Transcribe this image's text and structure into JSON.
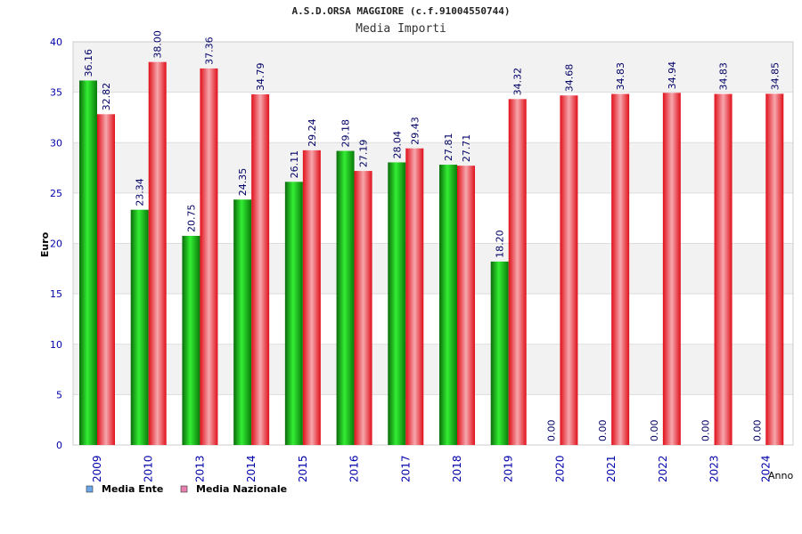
{
  "chart_data": {
    "type": "bar",
    "title": "A.S.D.ORSA MAGGIORE (c.f.91004550744)",
    "subtitle": "Media Importi",
    "xlabel": "Anno",
    "ylabel": "Euro",
    "ylim": [
      0,
      40
    ],
    "yticks": [
      0,
      5,
      10,
      15,
      20,
      25,
      30,
      35,
      40
    ],
    "grid": true,
    "legend_position": "bottom-left",
    "categories": [
      "2009",
      "2010",
      "2013",
      "2014",
      "2015",
      "2016",
      "2017",
      "2018",
      "2019",
      "2020",
      "2021",
      "2022",
      "2023",
      "2024"
    ],
    "series": [
      {
        "name": "Media Ente",
        "color": "#00aa00",
        "legend_color": "#6aa8e8",
        "values": [
          36.16,
          23.34,
          20.75,
          24.35,
          26.11,
          29.18,
          28.04,
          27.81,
          18.2,
          0.0,
          0.0,
          0.0,
          0.0,
          0.0
        ],
        "labels": [
          "36.16",
          "23.34",
          "20.75",
          "24.35",
          "26.11",
          "29.18",
          "28.04",
          "27.81",
          "18.20",
          "0.00",
          "0.00",
          "0.00",
          "0.00",
          "0.00"
        ]
      },
      {
        "name": "Media Nazionale",
        "color": "#ee1111",
        "legend_color": "#e87fb0",
        "values": [
          32.82,
          38.0,
          37.36,
          34.79,
          29.24,
          27.19,
          29.43,
          27.71,
          34.32,
          34.68,
          34.83,
          34.94,
          34.83,
          34.85
        ],
        "labels": [
          "32.82",
          "38.00",
          "37.36",
          "34.79",
          "29.24",
          "27.19",
          "29.43",
          "27.71",
          "34.32",
          "34.68",
          "34.83",
          "34.94",
          "34.83",
          "34.85"
        ]
      }
    ]
  }
}
